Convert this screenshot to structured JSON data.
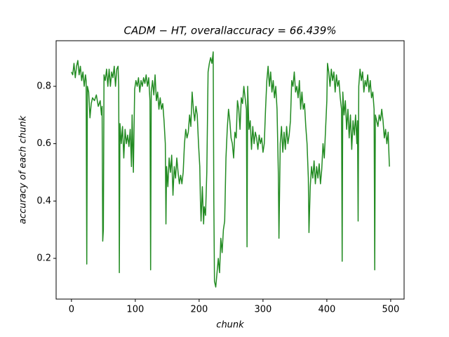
{
  "chart_data": {
    "type": "line",
    "title": "CADM − HT,  overallaccuracy  =  66.439%",
    "xlabel": "chunk",
    "ylabel": "accuracy of each chunk",
    "xlim": [
      -24,
      521
    ],
    "ylim": [
      0.058,
      0.959
    ],
    "xticks": [
      0,
      100,
      200,
      300,
      400,
      500
    ],
    "yticks": [
      0.2,
      0.4,
      0.6,
      0.8
    ],
    "grid": false,
    "x": [
      0,
      2,
      4,
      6,
      8,
      10,
      12,
      14,
      16,
      18,
      20,
      22,
      23,
      24,
      25,
      27,
      29,
      31,
      33,
      36,
      39,
      42,
      45,
      47,
      48,
      49,
      50,
      51,
      53,
      55,
      57,
      59,
      61,
      63,
      65,
      67,
      69,
      71,
      73,
      74,
      75,
      76,
      78,
      80,
      82,
      84,
      86,
      88,
      90,
      92,
      94,
      95,
      97,
      99,
      101,
      103,
      105,
      107,
      109,
      111,
      113,
      115,
      117,
      119,
      121,
      123,
      124,
      125,
      127,
      129,
      131,
      133,
      135,
      137,
      139,
      141,
      143,
      145,
      147,
      148,
      149,
      151,
      153,
      155,
      157,
      159,
      161,
      163,
      165,
      167,
      169,
      171,
      173,
      175,
      177,
      179,
      181,
      183,
      185,
      187,
      189,
      191,
      193,
      195,
      197,
      199,
      201,
      202,
      203,
      205,
      207,
      208,
      210,
      212,
      214,
      216,
      218,
      220,
      222,
      223,
      224,
      226,
      228,
      230,
      232,
      234,
      236,
      238,
      240,
      242,
      244,
      246,
      248,
      250,
      252,
      254,
      256,
      258,
      260,
      262,
      264,
      266,
      268,
      270,
      272,
      274,
      275,
      276,
      278,
      280,
      282,
      284,
      286,
      288,
      290,
      292,
      294,
      296,
      298,
      300,
      302,
      304,
      306,
      308,
      310,
      312,
      314,
      316,
      318,
      320,
      322,
      324,
      325,
      327,
      329,
      331,
      333,
      335,
      337,
      339,
      341,
      343,
      345,
      347,
      349,
      351,
      353,
      355,
      357,
      359,
      361,
      363,
      365,
      367,
      369,
      371,
      372,
      374,
      376,
      378,
      380,
      382,
      384,
      386,
      388,
      390,
      392,
      394,
      396,
      398,
      400,
      401,
      403,
      405,
      407,
      409,
      411,
      413,
      415,
      417,
      419,
      421,
      423,
      424,
      425,
      427,
      429,
      431,
      433,
      435,
      437,
      439,
      441,
      443,
      445,
      447,
      448,
      449,
      450,
      452,
      454,
      456,
      458,
      460,
      462,
      464,
      466,
      468,
      470,
      472,
      474,
      475,
      476,
      478,
      480,
      482,
      484,
      486,
      488,
      490,
      492,
      494,
      496,
      498
    ],
    "series": [
      {
        "name": "accuracy",
        "color": "#228b22",
        "values": [
          0.85,
          0.84,
          0.88,
          0.83,
          0.87,
          0.89,
          0.84,
          0.87,
          0.82,
          0.85,
          0.8,
          0.84,
          0.82,
          0.18,
          0.8,
          0.78,
          0.69,
          0.74,
          0.76,
          0.75,
          0.77,
          0.73,
          0.75,
          0.7,
          0.73,
          0.26,
          0.3,
          0.84,
          0.82,
          0.86,
          0.8,
          0.86,
          0.8,
          0.85,
          0.83,
          0.87,
          0.8,
          0.86,
          0.87,
          0.8,
          0.15,
          0.67,
          0.6,
          0.66,
          0.55,
          0.65,
          0.6,
          0.63,
          0.59,
          0.65,
          0.52,
          0.7,
          0.5,
          0.79,
          0.82,
          0.8,
          0.83,
          0.78,
          0.82,
          0.8,
          0.83,
          0.81,
          0.84,
          0.8,
          0.83,
          0.75,
          0.16,
          0.78,
          0.82,
          0.77,
          0.84,
          0.75,
          0.78,
          0.72,
          0.76,
          0.72,
          0.74,
          0.68,
          0.6,
          0.32,
          0.52,
          0.45,
          0.55,
          0.5,
          0.56,
          0.42,
          0.52,
          0.48,
          0.55,
          0.5,
          0.46,
          0.49,
          0.46,
          0.5,
          0.6,
          0.65,
          0.62,
          0.64,
          0.7,
          0.66,
          0.78,
          0.72,
          0.68,
          0.73,
          0.7,
          0.6,
          0.52,
          0.4,
          0.33,
          0.45,
          0.32,
          0.38,
          0.35,
          0.5,
          0.85,
          0.88,
          0.9,
          0.88,
          0.92,
          0.4,
          0.12,
          0.1,
          0.15,
          0.2,
          0.15,
          0.27,
          0.22,
          0.3,
          0.33,
          0.55,
          0.65,
          0.72,
          0.68,
          0.62,
          0.6,
          0.55,
          0.64,
          0.62,
          0.75,
          0.72,
          0.65,
          0.76,
          0.74,
          0.8,
          0.76,
          0.72,
          0.24,
          0.8,
          0.65,
          0.68,
          0.58,
          0.66,
          0.6,
          0.64,
          0.62,
          0.58,
          0.63,
          0.6,
          0.62,
          0.57,
          0.6,
          0.72,
          0.82,
          0.87,
          0.8,
          0.85,
          0.78,
          0.82,
          0.76,
          0.8,
          0.72,
          0.5,
          0.27,
          0.6,
          0.66,
          0.57,
          0.64,
          0.58,
          0.66,
          0.6,
          0.63,
          0.68,
          0.82,
          0.8,
          0.85,
          0.78,
          0.8,
          0.76,
          0.82,
          0.72,
          0.78,
          0.72,
          0.74,
          0.66,
          0.6,
          0.48,
          0.29,
          0.45,
          0.52,
          0.48,
          0.54,
          0.46,
          0.52,
          0.48,
          0.53,
          0.46,
          0.51,
          0.6,
          0.55,
          0.65,
          0.75,
          0.88,
          0.85,
          0.8,
          0.86,
          0.82,
          0.85,
          0.78,
          0.84,
          0.8,
          0.82,
          0.76,
          0.72,
          0.19,
          0.78,
          0.7,
          0.75,
          0.65,
          0.72,
          0.62,
          0.7,
          0.58,
          0.68,
          0.63,
          0.7,
          0.6,
          0.68,
          0.33,
          0.8,
          0.86,
          0.82,
          0.85,
          0.78,
          0.82,
          0.8,
          0.84,
          0.78,
          0.82,
          0.76,
          0.78,
          0.72,
          0.16,
          0.7,
          0.68,
          0.66,
          0.7,
          0.68,
          0.72,
          0.68,
          0.62,
          0.65,
          0.6,
          0.64,
          0.52
        ]
      }
    ]
  }
}
